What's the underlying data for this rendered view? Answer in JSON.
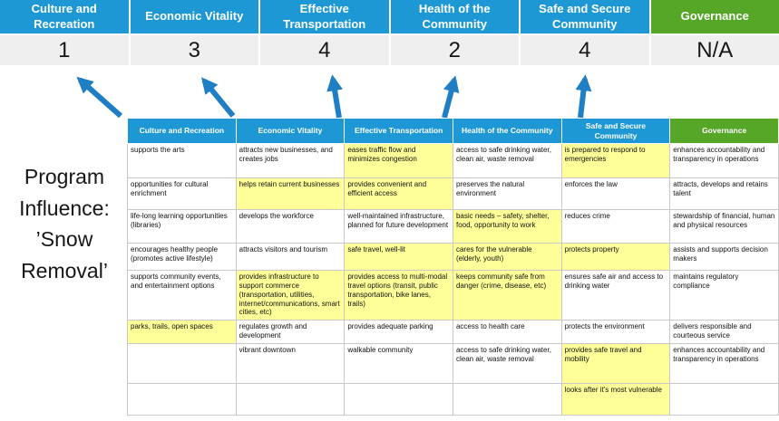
{
  "title": "Program Influence: ’Snow Removal’",
  "categories": [
    {
      "id": "culture-and-recreation",
      "label": "Culture and Recreation",
      "score": "1",
      "color": "blue"
    },
    {
      "id": "economic-vitality",
      "label": "Economic Vitality",
      "score": "3",
      "color": "blue"
    },
    {
      "id": "effective-transportation",
      "label": "Effective Transportation",
      "score": "4",
      "color": "blue"
    },
    {
      "id": "health-of-the-community",
      "label": "Health of the Community",
      "score": "2",
      "color": "blue"
    },
    {
      "id": "safe-and-secure-community",
      "label": "Safe and Secure Community",
      "score": "4",
      "color": "blue"
    },
    {
      "id": "governance",
      "label": "Governance",
      "score": "N/A",
      "color": "green"
    }
  ],
  "matrix": {
    "rows": [
      [
        {
          "text": "supports the arts",
          "highlight": false
        },
        {
          "text": "attracts new businesses, and creates jobs",
          "highlight": false
        },
        {
          "text": "eases traffic flow and minimizes congestion",
          "highlight": true
        },
        {
          "text": "access to safe drinking water, clean air, waste removal",
          "highlight": false
        },
        {
          "text": "is prepared to respond to emergencies",
          "highlight": true
        },
        {
          "text": "enhances accountability and transparency in operations",
          "highlight": false
        }
      ],
      [
        {
          "text": "opportunities for cultural enrichment",
          "highlight": false
        },
        {
          "text": "helps retain current businesses",
          "highlight": true
        },
        {
          "text": "provides convenient and efficient access",
          "highlight": true
        },
        {
          "text": "preserves the natural environment",
          "highlight": false
        },
        {
          "text": "enforces the law",
          "highlight": false
        },
        {
          "text": "attracts, develops and retains talent",
          "highlight": false
        }
      ],
      [
        {
          "text": "life-long learning opportunities (libraries)",
          "highlight": false
        },
        {
          "text": "develops the workforce",
          "highlight": false
        },
        {
          "text": "well-maintained infrastructure, planned for future development",
          "highlight": false
        },
        {
          "text": "basic needs – safety, shelter, food, opportunity to work",
          "highlight": true
        },
        {
          "text": "reduces crime",
          "highlight": false
        },
        {
          "text": "stewardship of financial, human and physical resources",
          "highlight": false
        }
      ],
      [
        {
          "text": "encourages healthy people (promotes active lifestyle)",
          "highlight": false
        },
        {
          "text": "attracts visitors and tourism",
          "highlight": false
        },
        {
          "text": "safe travel, well-lit",
          "highlight": true
        },
        {
          "text": "cares for the vulnerable (elderly, youth)",
          "highlight": true
        },
        {
          "text": "protects property",
          "highlight": true
        },
        {
          "text": "assists and supports decision makers",
          "highlight": false
        }
      ],
      [
        {
          "text": "supports community events, and entertainment options",
          "highlight": false
        },
        {
          "text": "provides infrastructure to support commerce (transportation, utilities, internet/communications, smart cities, etc)",
          "highlight": true
        },
        {
          "text": "provides access to multi-modal travel options (transit, public transportation, bike lanes, trails)",
          "highlight": true
        },
        {
          "text": "keeps community safe from danger (crime, disease, etc)",
          "highlight": true
        },
        {
          "text": "ensures safe air and access to drinking water",
          "highlight": false
        },
        {
          "text": "maintains regulatory compliance",
          "highlight": false
        }
      ],
      [
        {
          "text": "parks, trails, open spaces",
          "highlight": true
        },
        {
          "text": "regulates growth and development",
          "highlight": false
        },
        {
          "text": "provides adequate parking",
          "highlight": false
        },
        {
          "text": "access to health care",
          "highlight": false
        },
        {
          "text": "protects the environment",
          "highlight": false
        },
        {
          "text": "delivers responsible and courteous service",
          "highlight": false
        }
      ],
      [
        {
          "text": "",
          "highlight": false
        },
        {
          "text": "vibrant downtown",
          "highlight": false
        },
        {
          "text": "walkable community",
          "highlight": false
        },
        {
          "text": "access to safe drinking water, clean air, waste removal",
          "highlight": false
        },
        {
          "text": "provides safe travel and mobility",
          "highlight": true
        },
        {
          "text": "enhances accountability and transparency in operations",
          "highlight": false
        }
      ],
      [
        {
          "text": "",
          "highlight": false
        },
        {
          "text": "",
          "highlight": false
        },
        {
          "text": "",
          "highlight": false
        },
        {
          "text": "",
          "highlight": false
        },
        {
          "text": "looks after it's most vulnerable",
          "highlight": true
        },
        {
          "text": "",
          "highlight": false
        }
      ]
    ]
  },
  "colors": {
    "category_blue": "#1d98d5",
    "category_green": "#56a628",
    "score_bg": "#efefef",
    "highlight_yellow": "#ffff99",
    "arrow_blue": "#1f7ec4"
  }
}
